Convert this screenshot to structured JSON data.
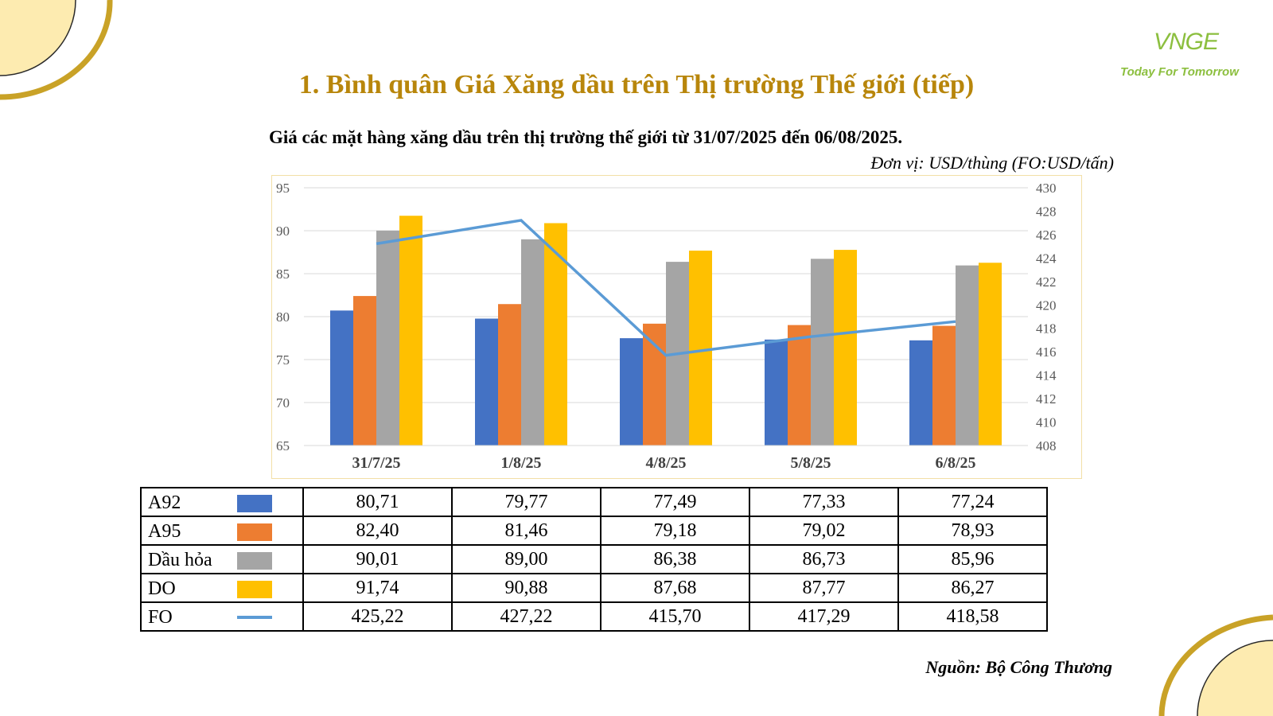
{
  "header": {
    "title": "1. Bình quân Giá Xăng dầu trên Thị trường Thế giới (tiếp)",
    "logo_mark": "VNGE",
    "logo_tagline": "Today For Tomorrow"
  },
  "subtitle": "Giá các mặt hàng xăng dầu trên thị trường thế giới từ 31/07/2025 đến 06/08/2025.",
  "unit_note": "Đơn vị: USD/thùng (FO:USD/tấn)",
  "source_note": "Nguồn: Bộ Công Thương",
  "colors": {
    "A92": "#4472c4",
    "A95": "#ed7d31",
    "Dau_hoa": "#a5a5a5",
    "DO": "#ffc000",
    "FO": "#5b9bd5",
    "title": "#b8860b",
    "accent_gold": "#c9a227",
    "deco_fill": "#fdebb0"
  },
  "chart_data": {
    "type": "bar",
    "categories": [
      "31/7/25",
      "1/8/25",
      "4/8/25",
      "5/8/25",
      "6/8/25"
    ],
    "y_left": {
      "min": 65,
      "max": 95,
      "ticks": [
        "65",
        "70",
        "75",
        "80",
        "85",
        "90",
        "95"
      ]
    },
    "y_right": {
      "min": 408,
      "max": 430,
      "ticks": [
        "408",
        "410",
        "412",
        "414",
        "416",
        "418",
        "420",
        "422",
        "424",
        "426",
        "428",
        "430"
      ]
    },
    "series": [
      {
        "name": "A92",
        "type": "bar",
        "axis": "left",
        "values": [
          80.71,
          79.77,
          77.49,
          77.33,
          77.24
        ],
        "labels": [
          "80,71",
          "79,77",
          "77,49",
          "77,33",
          "77,24"
        ]
      },
      {
        "name": "A95",
        "type": "bar",
        "axis": "left",
        "values": [
          82.4,
          81.46,
          79.18,
          79.02,
          78.93
        ],
        "labels": [
          "82,40",
          "81,46",
          "79,18",
          "79,02",
          "78,93"
        ]
      },
      {
        "name": "Dầu hỏa",
        "type": "bar",
        "axis": "left",
        "values": [
          90.01,
          89.0,
          86.38,
          86.73,
          85.96
        ],
        "labels": [
          "90,01",
          "89,00",
          "86,38",
          "86,73",
          "85,96"
        ]
      },
      {
        "name": "DO",
        "type": "bar",
        "axis": "left",
        "values": [
          91.74,
          90.88,
          87.68,
          87.77,
          86.27
        ],
        "labels": [
          "91,74",
          "90,88",
          "87,68",
          "87,77",
          "86,27"
        ]
      },
      {
        "name": "FO",
        "type": "line",
        "axis": "right",
        "values": [
          425.22,
          427.22,
          415.7,
          417.29,
          418.58
        ],
        "labels": [
          "425,22",
          "427,22",
          "415,70",
          "417,29",
          "418,58"
        ]
      }
    ],
    "grid": true,
    "legend": "table-below"
  }
}
